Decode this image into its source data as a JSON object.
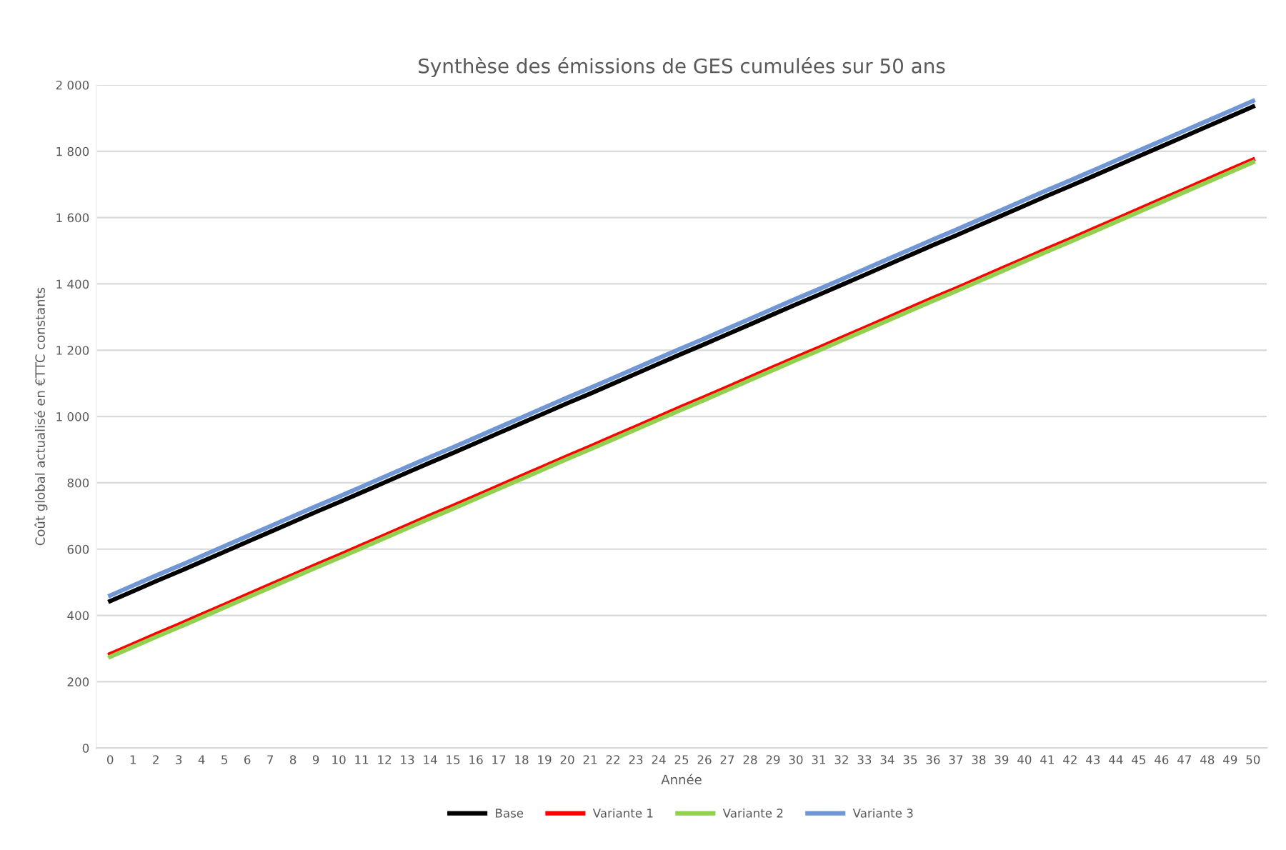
{
  "chart_data": {
    "type": "line",
    "title": "Synthèse des émissions de GES cumulées sur 50 ans",
    "xlabel": "Année",
    "ylabel": "Coût global actualisé en €TTC constants",
    "categories": [
      "0",
      "1",
      "2",
      "3",
      "4",
      "5",
      "6",
      "7",
      "8",
      "9",
      "10",
      "11",
      "12",
      "13",
      "14",
      "15",
      "16",
      "17",
      "18",
      "19",
      "20",
      "21",
      "22",
      "23",
      "24",
      "25",
      "26",
      "27",
      "28",
      "29",
      "30",
      "31",
      "32",
      "33",
      "34",
      "35",
      "36",
      "37",
      "38",
      "39",
      "40",
      "41",
      "42",
      "43",
      "44",
      "45",
      "46",
      "47",
      "48",
      "49",
      "50"
    ],
    "series": [
      {
        "name": "Base",
        "color": "#000000",
        "values": [
          443,
          473,
          503,
          532,
          562,
          592,
          622,
          652,
          682,
          712,
          741,
          771,
          801,
          831,
          861,
          890,
          920,
          950,
          980,
          1010,
          1040,
          1069,
          1099,
          1129,
          1159,
          1189,
          1218,
          1248,
          1278,
          1308,
          1338,
          1367,
          1397,
          1427,
          1457,
          1487,
          1517,
          1546,
          1576,
          1606,
          1636,
          1666,
          1695,
          1725,
          1755,
          1785,
          1815,
          1845,
          1875,
          1905,
          1935
        ]
      },
      {
        "name": "Variante 1",
        "color": "#ff0000",
        "values": [
          283,
          313,
          343,
          372,
          402,
          432,
          462,
          492,
          522,
          552,
          581,
          611,
          641,
          671,
          701,
          730,
          760,
          790,
          820,
          850,
          880,
          909,
          939,
          969,
          999,
          1029,
          1058,
          1088,
          1118,
          1148,
          1178,
          1207,
          1237,
          1267,
          1297,
          1327,
          1357,
          1386,
          1416,
          1446,
          1476,
          1506,
          1535,
          1565,
          1595,
          1625,
          1655,
          1685,
          1715,
          1745,
          1775
        ]
      },
      {
        "name": "Variante 2",
        "color": "#92d050",
        "values": [
          275,
          305,
          335,
          364,
          394,
          424,
          454,
          484,
          514,
          544,
          573,
          603,
          633,
          663,
          693,
          722,
          752,
          782,
          812,
          842,
          872,
          901,
          931,
          961,
          991,
          1021,
          1050,
          1080,
          1110,
          1140,
          1170,
          1199,
          1229,
          1259,
          1289,
          1319,
          1349,
          1378,
          1408,
          1438,
          1468,
          1498,
          1527,
          1557,
          1587,
          1617,
          1647,
          1677,
          1707,
          1737,
          1767
        ]
      },
      {
        "name": "Variante 3",
        "color": "#7096d4",
        "values": [
          460,
          490,
          520,
          549,
          579,
          609,
          639,
          669,
          699,
          729,
          758,
          788,
          818,
          848,
          878,
          907,
          937,
          967,
          997,
          1027,
          1057,
          1086,
          1116,
          1146,
          1176,
          1206,
          1235,
          1265,
          1295,
          1325,
          1355,
          1384,
          1414,
          1444,
          1474,
          1504,
          1534,
          1563,
          1593,
          1623,
          1653,
          1683,
          1712,
          1742,
          1772,
          1802,
          1832,
          1862,
          1892,
          1922,
          1952
        ]
      }
    ],
    "ylim": [
      0,
      2000
    ],
    "yticks": [
      0,
      200,
      400,
      600,
      800,
      {
        "value": 1000,
        "label": "1 000"
      },
      {
        "value": 1200,
        "label": "1 200"
      },
      {
        "value": 1400,
        "label": "1 400"
      },
      {
        "value": 1600,
        "label": "1 600"
      },
      {
        "value": 1800,
        "label": "1 800"
      },
      {
        "value": 2000,
        "label": "2 000"
      }
    ],
    "grid": "y",
    "legend": "bottom",
    "marker": "none",
    "line_style": "solid"
  }
}
